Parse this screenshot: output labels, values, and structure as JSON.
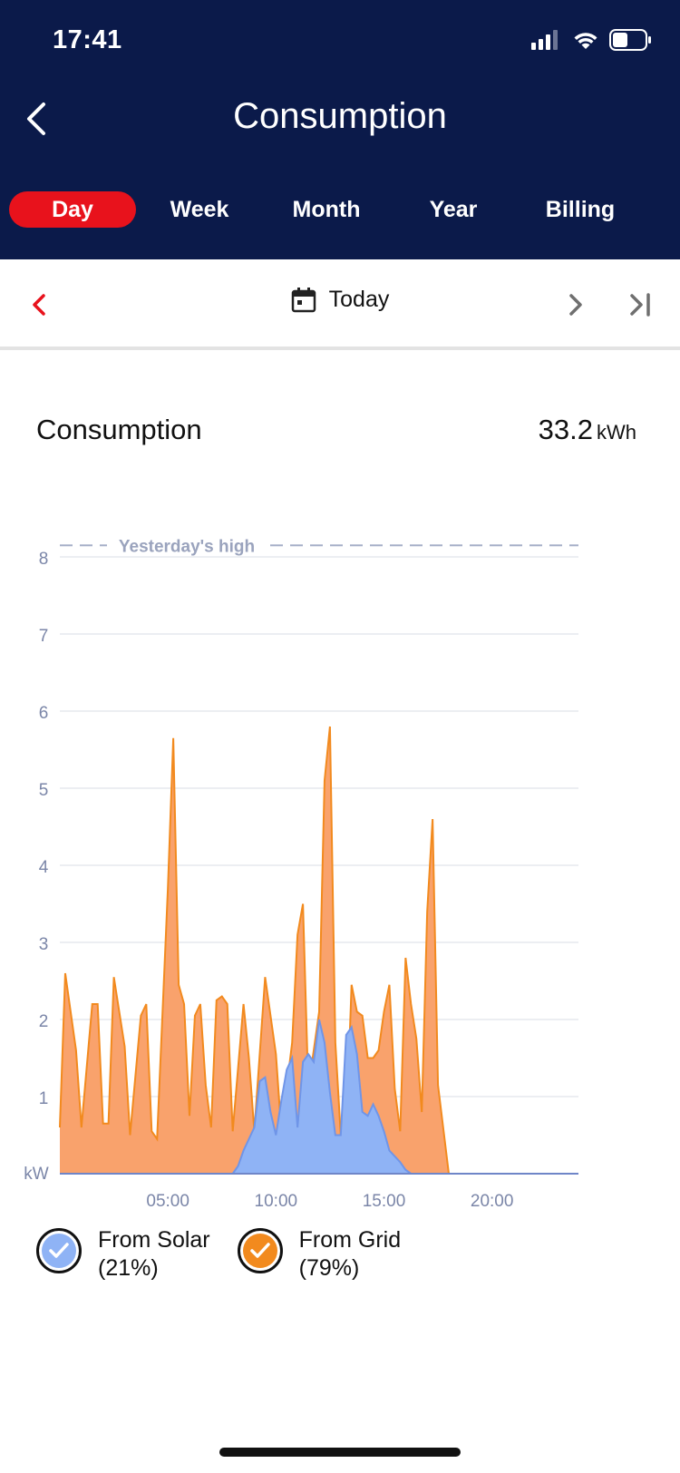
{
  "status": {
    "time": "17:41"
  },
  "header": {
    "title": "Consumption"
  },
  "tabs": [
    {
      "label": "Day",
      "active": true
    },
    {
      "label": "Week",
      "active": false
    },
    {
      "label": "Month",
      "active": false
    },
    {
      "label": "Year",
      "active": false
    },
    {
      "label": "Billing",
      "active": false
    }
  ],
  "date_nav": {
    "label": "Today"
  },
  "summary": {
    "title": "Consumption",
    "total": "33.2",
    "unit": "kWh"
  },
  "colors": {
    "header_bg": "#0b1a4a",
    "active_tab": "#e8121c",
    "grid_fill": "#f9a26c",
    "grid_line": "#f28a1e",
    "solar_fill": "#8fb3f5",
    "solar_line": "#6f95e8",
    "axis_text": "#7b86a8"
  },
  "chart_data": {
    "type": "area",
    "ylabel": "kW",
    "ylim": [
      0,
      8
    ],
    "yticks": [
      1,
      2,
      3,
      4,
      5,
      6,
      7,
      8
    ],
    "xlim": [
      0,
      24
    ],
    "xticks": [
      {
        "value": 5,
        "label": "05:00"
      },
      {
        "value": 10,
        "label": "10:00"
      },
      {
        "value": 15,
        "label": "15:00"
      },
      {
        "value": 20,
        "label": "20:00"
      }
    ],
    "reference_line": {
      "label": "Yesterday's high",
      "value": 8.15
    },
    "series": [
      {
        "name": "From Grid",
        "percent": "(79%)",
        "points": [
          [
            0,
            0.6
          ],
          [
            0.25,
            2.6
          ],
          [
            0.75,
            1.6
          ],
          [
            1,
            0.6
          ],
          [
            1.5,
            2.2
          ],
          [
            1.75,
            2.2
          ],
          [
            2,
            0.65
          ],
          [
            2.25,
            0.65
          ],
          [
            2.5,
            2.55
          ],
          [
            3,
            1.65
          ],
          [
            3.25,
            0.5
          ],
          [
            3.75,
            2.05
          ],
          [
            4,
            2.2
          ],
          [
            4.25,
            0.55
          ],
          [
            4.5,
            0.45
          ],
          [
            5,
            3.7
          ],
          [
            5.25,
            5.65
          ],
          [
            5.5,
            2.45
          ],
          [
            5.75,
            2.2
          ],
          [
            6,
            0.75
          ],
          [
            6.25,
            2.05
          ],
          [
            6.5,
            2.2
          ],
          [
            6.75,
            1.15
          ],
          [
            7,
            0.6
          ],
          [
            7.25,
            2.25
          ],
          [
            7.5,
            2.3
          ],
          [
            7.75,
            2.2
          ],
          [
            8,
            0.55
          ],
          [
            8.5,
            2.2
          ],
          [
            8.75,
            1.5
          ],
          [
            9,
            0.55
          ],
          [
            9.5,
            2.55
          ],
          [
            10,
            1.55
          ],
          [
            10.25,
            0.55
          ],
          [
            10.75,
            1.7
          ],
          [
            11,
            3.1
          ],
          [
            11.25,
            3.5
          ],
          [
            11.5,
            1.1
          ],
          [
            12,
            2.1
          ],
          [
            12.25,
            5.1
          ],
          [
            12.5,
            5.8
          ],
          [
            12.75,
            1.7
          ],
          [
            13,
            0.5
          ],
          [
            13.25,
            0.5
          ],
          [
            13.5,
            2.45
          ],
          [
            13.75,
            2.1
          ],
          [
            14,
            2.05
          ],
          [
            14.25,
            1.5
          ],
          [
            14.5,
            1.5
          ],
          [
            14.75,
            1.6
          ],
          [
            15,
            2.1
          ],
          [
            15.25,
            2.45
          ],
          [
            15.5,
            1.1
          ],
          [
            15.75,
            0.55
          ],
          [
            16,
            2.8
          ],
          [
            16.25,
            2.2
          ],
          [
            16.5,
            1.75
          ],
          [
            16.75,
            0.8
          ],
          [
            17,
            3.4
          ],
          [
            17.25,
            4.6
          ],
          [
            17.5,
            1.15
          ],
          [
            18,
            0
          ],
          [
            24,
            0
          ]
        ]
      },
      {
        "name": "From Solar",
        "percent": "(21%)",
        "points": [
          [
            0,
            0
          ],
          [
            8,
            0
          ],
          [
            8.25,
            0.1
          ],
          [
            8.5,
            0.3
          ],
          [
            8.75,
            0.45
          ],
          [
            9,
            0.6
          ],
          [
            9.25,
            1.2
          ],
          [
            9.5,
            1.25
          ],
          [
            9.75,
            0.8
          ],
          [
            10,
            0.5
          ],
          [
            10.25,
            0.95
          ],
          [
            10.5,
            1.35
          ],
          [
            10.75,
            1.5
          ],
          [
            11,
            0.6
          ],
          [
            11.25,
            1.45
          ],
          [
            11.5,
            1.55
          ],
          [
            11.75,
            1.45
          ],
          [
            12,
            2.0
          ],
          [
            12.25,
            1.7
          ],
          [
            12.5,
            1.05
          ],
          [
            12.75,
            0.5
          ],
          [
            13,
            0.5
          ],
          [
            13.25,
            1.8
          ],
          [
            13.5,
            1.9
          ],
          [
            13.75,
            1.55
          ],
          [
            14,
            0.8
          ],
          [
            14.25,
            0.75
          ],
          [
            14.5,
            0.9
          ],
          [
            14.75,
            0.75
          ],
          [
            15,
            0.55
          ],
          [
            15.25,
            0.3
          ],
          [
            15.75,
            0.15
          ],
          [
            16,
            0.05
          ],
          [
            16.25,
            0
          ],
          [
            24,
            0
          ]
        ]
      }
    ]
  }
}
